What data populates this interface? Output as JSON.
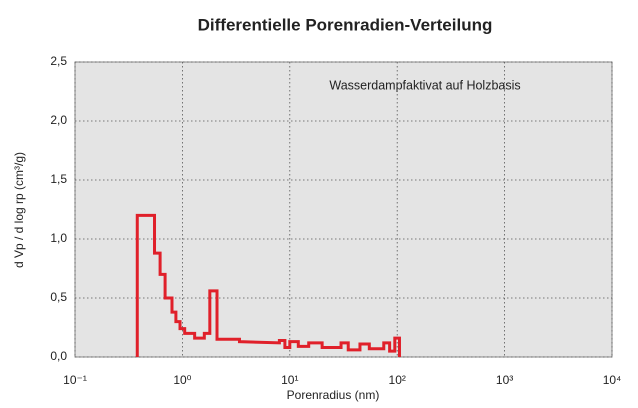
{
  "chart_data": {
    "type": "line",
    "title": "Differentielle Porenradien-Verteilung",
    "annotation": "Wasserdampfaktivat auf Holzbasis",
    "xlabel": "Porenradius  (nm)",
    "ylabel": "d Vp / d log rp (cm³/g)",
    "xscale": "log",
    "xlim": [
      0.1,
      10000
    ],
    "xticks": [
      {
        "value": 0.1,
        "label": "10⁻¹"
      },
      {
        "value": 1,
        "label": "10⁰"
      },
      {
        "value": 10,
        "label": "10¹"
      },
      {
        "value": 100,
        "label": "10²"
      },
      {
        "value": 1000,
        "label": "10³"
      },
      {
        "value": 10000,
        "label": "10⁴"
      }
    ],
    "ylim": [
      0,
      2.5
    ],
    "yticks": [
      {
        "value": 0,
        "label": "0,0"
      },
      {
        "value": 0.5,
        "label": "0,5"
      },
      {
        "value": 1,
        "label": "1,0"
      },
      {
        "value": 1.5,
        "label": "1,5"
      },
      {
        "value": 2,
        "label": "2,0"
      },
      {
        "value": 2.5,
        "label": "2,5"
      }
    ],
    "grid": true,
    "color": "#e0202a",
    "x": [
      0.38,
      0.38,
      0.55,
      0.55,
      0.62,
      0.62,
      0.69,
      0.69,
      0.8,
      0.8,
      0.87,
      0.87,
      0.95,
      0.95,
      1.05,
      1.05,
      1.3,
      1.3,
      1.6,
      1.6,
      1.8,
      1.8,
      2.1,
      2.1,
      3.4,
      3.4,
      8,
      8,
      9,
      9,
      10,
      10,
      12,
      12,
      15,
      15,
      20,
      20,
      30,
      30,
      35,
      35,
      45,
      45,
      55,
      55,
      75,
      75,
      85,
      85,
      95,
      95,
      105,
      105
    ],
    "values": [
      0,
      1.2,
      1.2,
      0.88,
      0.88,
      0.7,
      0.7,
      0.5,
      0.5,
      0.38,
      0.38,
      0.3,
      0.3,
      0.24,
      0.24,
      0.2,
      0.2,
      0.16,
      0.16,
      0.2,
      0.2,
      0.56,
      0.56,
      0.15,
      0.15,
      0.13,
      0.12,
      0.14,
      0.14,
      0.08,
      0.08,
      0.13,
      0.13,
      0.09,
      0.09,
      0.12,
      0.12,
      0.08,
      0.08,
      0.12,
      0.12,
      0.06,
      0.06,
      0.11,
      0.11,
      0.07,
      0.07,
      0.12,
      0.12,
      0.05,
      0.05,
      0.16,
      0.16,
      0
    ]
  }
}
